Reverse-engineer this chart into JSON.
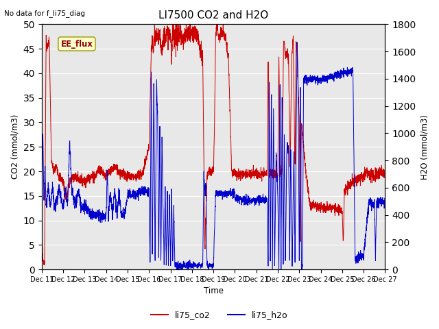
{
  "title": "LI7500 CO2 and H2O",
  "top_left_text": "No data for f_li75_diag",
  "annotation_text": "EE_flux",
  "xlabel": "Time",
  "ylabel_left": "CO2 (mmol/m3)",
  "ylabel_right": "H2O (mmol/m3)",
  "ylim_left": [
    0,
    50
  ],
  "ylim_right": [
    0,
    1800
  ],
  "yticks_left": [
    0,
    5,
    10,
    15,
    20,
    25,
    30,
    35,
    40,
    45,
    50
  ],
  "yticks_right": [
    0,
    200,
    400,
    600,
    800,
    1000,
    1200,
    1400,
    1600,
    1800
  ],
  "background_color": "#e8e8e8",
  "co2_color": "#cc0000",
  "h2o_color": "#0000cc",
  "legend_labels": [
    "li75_co2",
    "li75_h2o"
  ],
  "xtick_labels": [
    "Dec 11",
    "Dec 12",
    "Dec 13",
    "Dec 14",
    "Dec 15",
    "Dec 16",
    "Dec 17",
    "Dec 18",
    "Dec 19",
    "Dec 20",
    "Dec 21",
    "Dec 22",
    "Dec 23",
    "Dec 24",
    "Dec 25",
    "Dec 26",
    "Dec 27"
  ],
  "n_points": 3000,
  "figsize": [
    6.4,
    4.8
  ],
  "dpi": 100
}
